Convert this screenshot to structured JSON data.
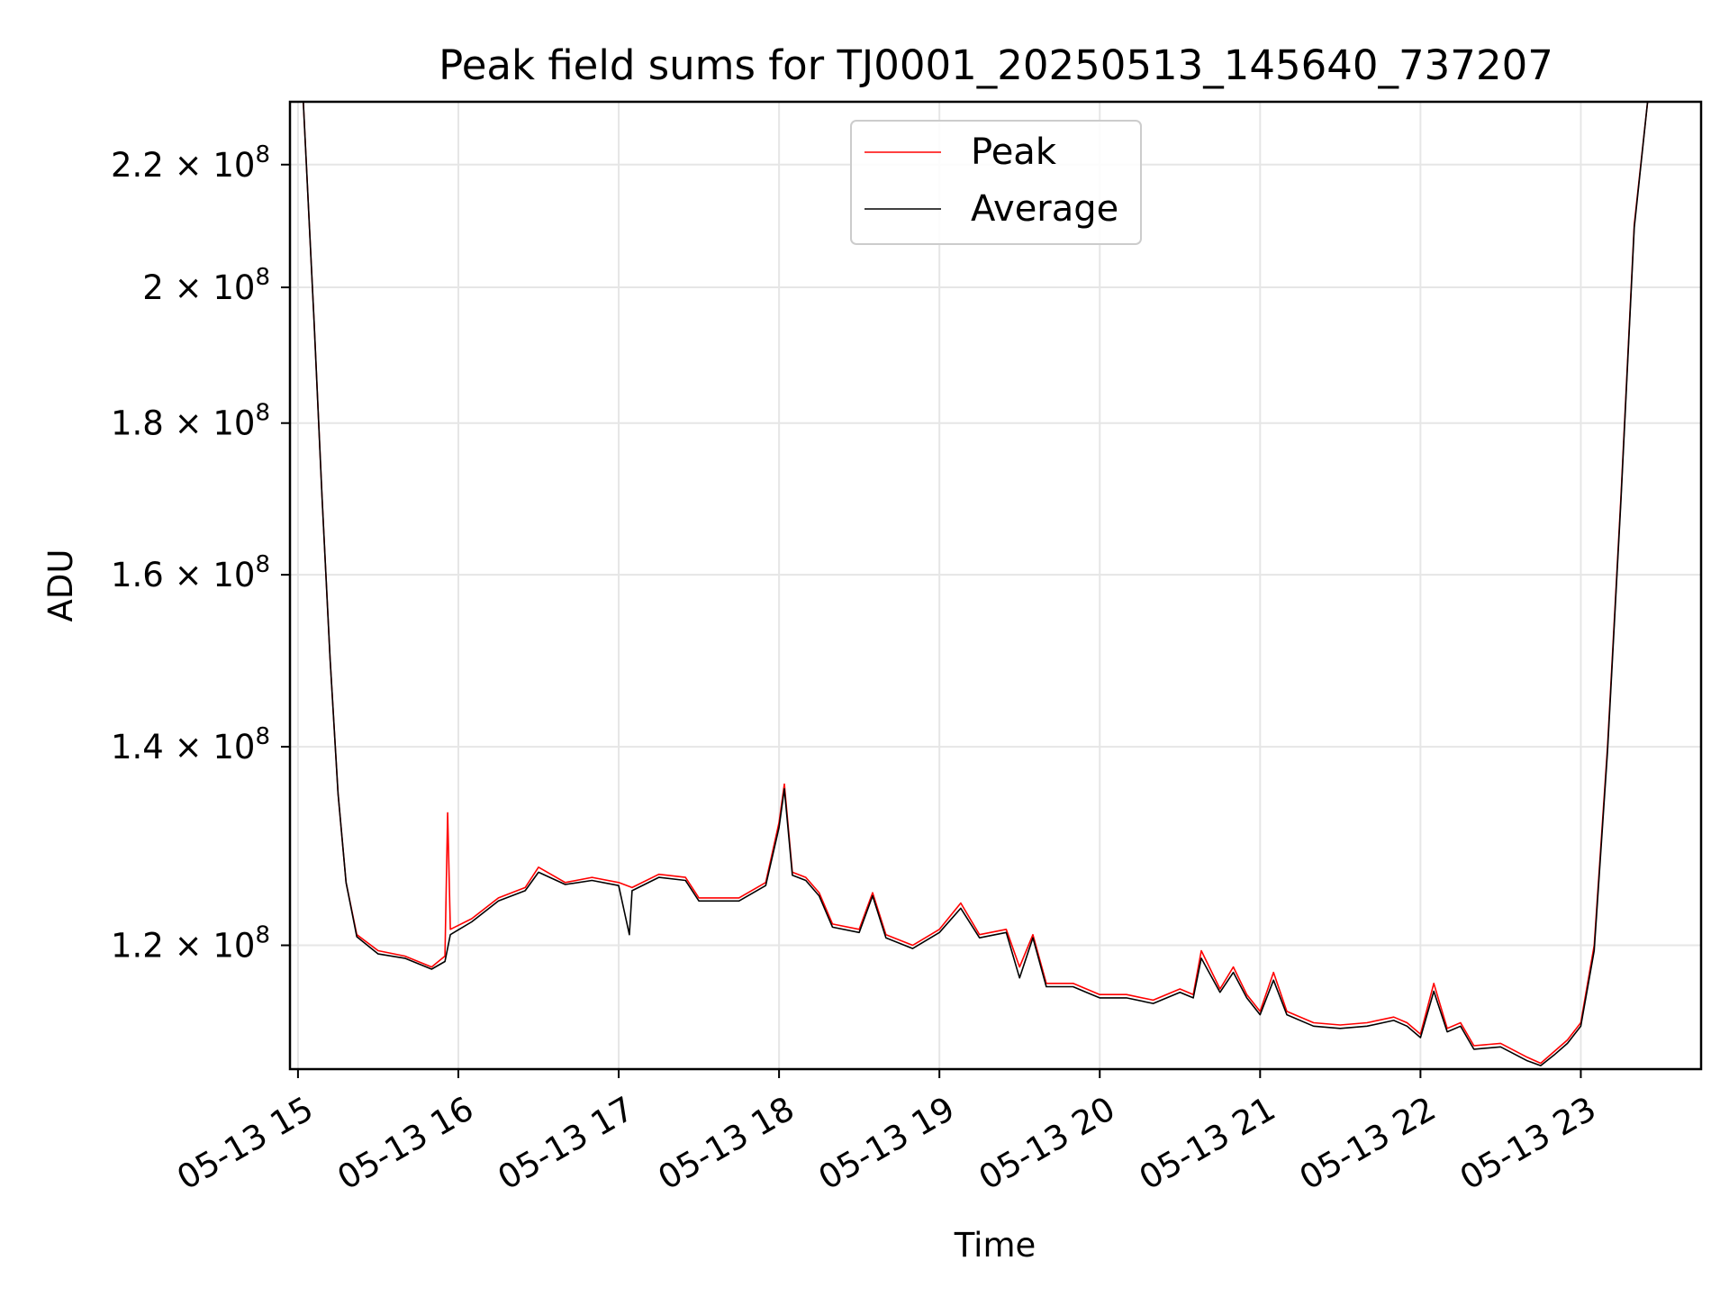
{
  "chart_data": {
    "type": "line",
    "title": "Peak field sums for TJ0001_20250513_145640_737207",
    "xlabel": "Time",
    "ylabel": "ADU",
    "y_scale": "log",
    "xlim": [
      "2025-05-13 14:57",
      "2025-05-13 23:45"
    ],
    "ylim": [
      109000000,
      231000000
    ],
    "x_ticks": [
      "05-13 15",
      "05-13 16",
      "05-13 17",
      "05-13 18",
      "05-13 19",
      "05-13 20",
      "05-13 21",
      "05-13 22",
      "05-13 23"
    ],
    "y_ticks": [
      {
        "value": 120000000,
        "mantissa": "1.2",
        "exponent": "8"
      },
      {
        "value": 140000000,
        "mantissa": "1.4",
        "exponent": "8"
      },
      {
        "value": 160000000,
        "mantissa": "1.6",
        "exponent": "8"
      },
      {
        "value": 180000000,
        "mantissa": "1.8",
        "exponent": "8"
      },
      {
        "value": 200000000,
        "mantissa": "2",
        "exponent": "8"
      },
      {
        "value": 220000000,
        "mantissa": "2.2",
        "exponent": "8"
      }
    ],
    "grid": true,
    "legend_position": "top-center",
    "series": [
      {
        "name": "Peak",
        "color": "#ff0000",
        "points": [
          [
            "2025-05-13 15:02",
            231000000
          ],
          [
            "2025-05-13 15:06",
            195000000
          ],
          [
            "2025-05-13 15:09",
            170000000
          ],
          [
            "2025-05-13 15:12",
            150000000
          ],
          [
            "2025-05-13 15:15",
            135000000
          ],
          [
            "2025-05-13 15:18",
            126000000
          ],
          [
            "2025-05-13 15:22",
            121000000
          ],
          [
            "2025-05-13 15:30",
            119500000
          ],
          [
            "2025-05-13 15:40",
            119000000
          ],
          [
            "2025-05-13 15:50",
            118000000
          ],
          [
            "2025-05-13 15:55",
            119000000
          ],
          [
            "2025-05-13 15:56",
            133000000
          ],
          [
            "2025-05-13 15:57",
            121500000
          ],
          [
            "2025-05-13 16:05",
            122500000
          ],
          [
            "2025-05-13 16:15",
            124500000
          ],
          [
            "2025-05-13 16:25",
            125500000
          ],
          [
            "2025-05-13 16:30",
            127500000
          ],
          [
            "2025-05-13 16:40",
            126000000
          ],
          [
            "2025-05-13 16:50",
            126500000
          ],
          [
            "2025-05-13 17:00",
            126000000
          ],
          [
            "2025-05-13 17:05",
            125500000
          ],
          [
            "2025-05-13 17:15",
            126800000
          ],
          [
            "2025-05-13 17:25",
            126500000
          ],
          [
            "2025-05-13 17:30",
            124500000
          ],
          [
            "2025-05-13 17:45",
            124500000
          ],
          [
            "2025-05-13 17:55",
            126000000
          ],
          [
            "2025-05-13 18:00",
            132000000
          ],
          [
            "2025-05-13 18:02",
            136000000
          ],
          [
            "2025-05-13 18:05",
            127000000
          ],
          [
            "2025-05-13 18:10",
            126500000
          ],
          [
            "2025-05-13 18:15",
            125000000
          ],
          [
            "2025-05-13 18:20",
            122000000
          ],
          [
            "2025-05-13 18:30",
            121500000
          ],
          [
            "2025-05-13 18:35",
            125000000
          ],
          [
            "2025-05-13 18:40",
            121000000
          ],
          [
            "2025-05-13 18:50",
            120000000
          ],
          [
            "2025-05-13 19:00",
            121500000
          ],
          [
            "2025-05-13 19:08",
            124000000
          ],
          [
            "2025-05-13 19:15",
            121000000
          ],
          [
            "2025-05-13 19:25",
            121500000
          ],
          [
            "2025-05-13 19:30",
            118000000
          ],
          [
            "2025-05-13 19:35",
            121000000
          ],
          [
            "2025-05-13 19:40",
            116500000
          ],
          [
            "2025-05-13 19:50",
            116500000
          ],
          [
            "2025-05-13 19:55",
            116000000
          ],
          [
            "2025-05-13 20:00",
            115500000
          ],
          [
            "2025-05-13 20:10",
            115500000
          ],
          [
            "2025-05-13 20:20",
            115000000
          ],
          [
            "2025-05-13 20:30",
            116000000
          ],
          [
            "2025-05-13 20:35",
            115500000
          ],
          [
            "2025-05-13 20:38",
            119500000
          ],
          [
            "2025-05-13 20:45",
            116000000
          ],
          [
            "2025-05-13 20:50",
            118000000
          ],
          [
            "2025-05-13 20:55",
            115500000
          ],
          [
            "2025-05-13 21:00",
            114000000
          ],
          [
            "2025-05-13 21:05",
            117500000
          ],
          [
            "2025-05-13 21:10",
            114000000
          ],
          [
            "2025-05-13 21:20",
            113000000
          ],
          [
            "2025-05-13 21:30",
            112800000
          ],
          [
            "2025-05-13 21:40",
            113000000
          ],
          [
            "2025-05-13 21:50",
            113500000
          ],
          [
            "2025-05-13 21:55",
            113000000
          ],
          [
            "2025-05-13 22:00",
            112000000
          ],
          [
            "2025-05-13 22:05",
            116500000
          ],
          [
            "2025-05-13 22:10",
            112500000
          ],
          [
            "2025-05-13 22:15",
            113000000
          ],
          [
            "2025-05-13 22:20",
            111000000
          ],
          [
            "2025-05-13 22:30",
            111200000
          ],
          [
            "2025-05-13 22:40",
            110000000
          ],
          [
            "2025-05-13 22:45",
            109500000
          ],
          [
            "2025-05-13 22:50",
            110500000
          ],
          [
            "2025-05-13 22:55",
            111500000
          ],
          [
            "2025-05-13 23:00",
            113000000
          ],
          [
            "2025-05-13 23:05",
            120000000
          ],
          [
            "2025-05-13 23:10",
            140000000
          ],
          [
            "2025-05-13 23:15",
            170000000
          ],
          [
            "2025-05-13 23:20",
            210000000
          ],
          [
            "2025-05-13 23:25",
            231000000
          ]
        ]
      },
      {
        "name": "Average",
        "color": "#000000",
        "points": [
          [
            "2025-05-13 15:02",
            231000000
          ],
          [
            "2025-05-13 15:06",
            195000000
          ],
          [
            "2025-05-13 15:09",
            170000000
          ],
          [
            "2025-05-13 15:12",
            150000000
          ],
          [
            "2025-05-13 15:15",
            135000000
          ],
          [
            "2025-05-13 15:18",
            126000000
          ],
          [
            "2025-05-13 15:22",
            120800000
          ],
          [
            "2025-05-13 15:30",
            119200000
          ],
          [
            "2025-05-13 15:40",
            118800000
          ],
          [
            "2025-05-13 15:50",
            117800000
          ],
          [
            "2025-05-13 15:55",
            118500000
          ],
          [
            "2025-05-13 15:57",
            121000000
          ],
          [
            "2025-05-13 16:05",
            122200000
          ],
          [
            "2025-05-13 16:15",
            124200000
          ],
          [
            "2025-05-13 16:25",
            125200000
          ],
          [
            "2025-05-13 16:30",
            127000000
          ],
          [
            "2025-05-13 16:40",
            125800000
          ],
          [
            "2025-05-13 16:50",
            126200000
          ],
          [
            "2025-05-13 17:00",
            125700000
          ],
          [
            "2025-05-13 17:04",
            121000000
          ],
          [
            "2025-05-13 17:05",
            125200000
          ],
          [
            "2025-05-13 17:15",
            126500000
          ],
          [
            "2025-05-13 17:25",
            126200000
          ],
          [
            "2025-05-13 17:30",
            124200000
          ],
          [
            "2025-05-13 17:45",
            124200000
          ],
          [
            "2025-05-13 17:55",
            125700000
          ],
          [
            "2025-05-13 18:00",
            131500000
          ],
          [
            "2025-05-13 18:02",
            135500000
          ],
          [
            "2025-05-13 18:05",
            126700000
          ],
          [
            "2025-05-13 18:10",
            126200000
          ],
          [
            "2025-05-13 18:15",
            124700000
          ],
          [
            "2025-05-13 18:20",
            121700000
          ],
          [
            "2025-05-13 18:30",
            121200000
          ],
          [
            "2025-05-13 18:35",
            124700000
          ],
          [
            "2025-05-13 18:40",
            120700000
          ],
          [
            "2025-05-13 18:50",
            119700000
          ],
          [
            "2025-05-13 19:00",
            121200000
          ],
          [
            "2025-05-13 19:08",
            123500000
          ],
          [
            "2025-05-13 19:15",
            120700000
          ],
          [
            "2025-05-13 19:25",
            121200000
          ],
          [
            "2025-05-13 19:30",
            117000000
          ],
          [
            "2025-05-13 19:35",
            120700000
          ],
          [
            "2025-05-13 19:40",
            116200000
          ],
          [
            "2025-05-13 19:50",
            116200000
          ],
          [
            "2025-05-13 19:55",
            115700000
          ],
          [
            "2025-05-13 20:00",
            115200000
          ],
          [
            "2025-05-13 20:10",
            115200000
          ],
          [
            "2025-05-13 20:20",
            114700000
          ],
          [
            "2025-05-13 20:30",
            115700000
          ],
          [
            "2025-05-13 20:35",
            115200000
          ],
          [
            "2025-05-13 20:38",
            118800000
          ],
          [
            "2025-05-13 20:45",
            115700000
          ],
          [
            "2025-05-13 20:50",
            117500000
          ],
          [
            "2025-05-13 20:55",
            115200000
          ],
          [
            "2025-05-13 21:00",
            113700000
          ],
          [
            "2025-05-13 21:05",
            116800000
          ],
          [
            "2025-05-13 21:10",
            113700000
          ],
          [
            "2025-05-13 21:20",
            112700000
          ],
          [
            "2025-05-13 21:30",
            112500000
          ],
          [
            "2025-05-13 21:40",
            112700000
          ],
          [
            "2025-05-13 21:50",
            113200000
          ],
          [
            "2025-05-13 21:55",
            112700000
          ],
          [
            "2025-05-13 22:00",
            111700000
          ],
          [
            "2025-05-13 22:05",
            115800000
          ],
          [
            "2025-05-13 22:10",
            112200000
          ],
          [
            "2025-05-13 22:15",
            112700000
          ],
          [
            "2025-05-13 22:20",
            110700000
          ],
          [
            "2025-05-13 22:30",
            110900000
          ],
          [
            "2025-05-13 22:40",
            109700000
          ],
          [
            "2025-05-13 22:45",
            109300000
          ],
          [
            "2025-05-13 22:50",
            110200000
          ],
          [
            "2025-05-13 22:55",
            111200000
          ],
          [
            "2025-05-13 23:00",
            112700000
          ],
          [
            "2025-05-13 23:05",
            119500000
          ],
          [
            "2025-05-13 23:10",
            139500000
          ],
          [
            "2025-05-13 23:15",
            169500000
          ],
          [
            "2025-05-13 23:20",
            209500000
          ],
          [
            "2025-05-13 23:25",
            231000000
          ]
        ]
      }
    ]
  }
}
